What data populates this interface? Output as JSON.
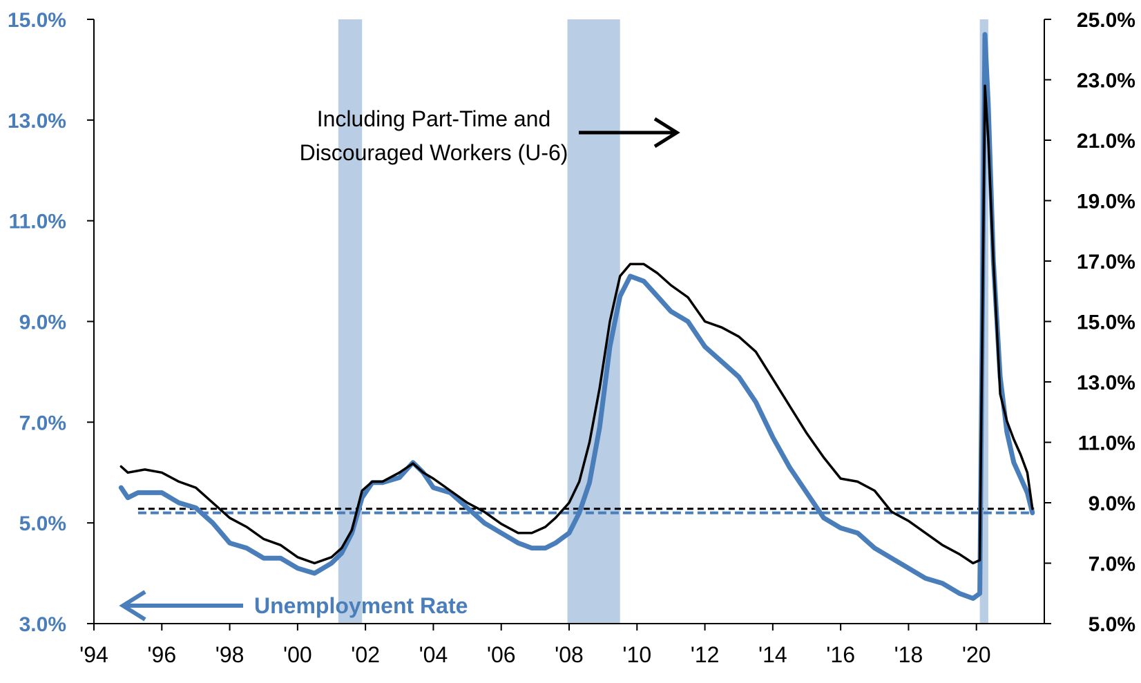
{
  "chart_data": {
    "type": "line",
    "x_ticks": [
      "'94",
      "'96",
      "'98",
      "'00",
      "'02",
      "'04",
      "'06",
      "'08",
      "'10",
      "'12",
      "'14",
      "'16",
      "'18",
      "'20"
    ],
    "y_left": {
      "ticks": [
        "3.0%",
        "5.0%",
        "7.0%",
        "9.0%",
        "11.0%",
        "13.0%",
        "15.0%"
      ],
      "range": [
        3,
        15
      ]
    },
    "y_right": {
      "ticks": [
        "5.0%",
        "7.0%",
        "9.0%",
        "11.0%",
        "13.0%",
        "15.0%",
        "17.0%",
        "19.0%",
        "21.0%",
        "23.0%",
        "25.0%"
      ],
      "range": [
        5,
        25
      ]
    },
    "recessions": [
      [
        2001.2,
        2001.9
      ],
      [
        2007.95,
        2009.5
      ],
      [
        2020.1,
        2020.35
      ]
    ],
    "reference_lines": {
      "unemployment": 5.2,
      "u6": 8.8
    },
    "annotations": {
      "u6_line1": "Including Part-Time and",
      "u6_line2": "Discouraged Workers (U-6)",
      "unemployment": "Unemployment Rate"
    },
    "series": [
      {
        "name": "Unemployment Rate",
        "axis": "left",
        "color": "#4a7ebb",
        "x": [
          1994.8,
          1995.0,
          1995.3,
          1995.6,
          1996.0,
          1996.5,
          1997.0,
          1997.5,
          1998.0,
          1998.5,
          1999.0,
          1999.5,
          2000.0,
          2000.5,
          2001.0,
          2001.3,
          2001.6,
          2001.9,
          2002.2,
          2002.5,
          2003.0,
          2003.4,
          2003.7,
          2004.0,
          2004.5,
          2005.0,
          2005.5,
          2006.0,
          2006.5,
          2006.9,
          2007.3,
          2007.6,
          2008.0,
          2008.3,
          2008.6,
          2008.9,
          2009.2,
          2009.5,
          2009.8,
          2010.2,
          2010.6,
          2011.0,
          2011.5,
          2012.0,
          2012.5,
          2013.0,
          2013.5,
          2014.0,
          2014.5,
          2015.0,
          2015.5,
          2016.0,
          2016.5,
          2017.0,
          2017.5,
          2018.0,
          2018.5,
          2019.0,
          2019.5,
          2019.9,
          2020.1,
          2020.25,
          2020.35,
          2020.5,
          2020.7,
          2020.9,
          2021.1,
          2021.3,
          2021.5,
          2021.65
        ],
        "y": [
          5.7,
          5.5,
          5.6,
          5.6,
          5.6,
          5.4,
          5.3,
          5.0,
          4.6,
          4.5,
          4.3,
          4.3,
          4.1,
          4.0,
          4.2,
          4.4,
          4.8,
          5.5,
          5.8,
          5.8,
          5.9,
          6.2,
          6.0,
          5.7,
          5.6,
          5.3,
          5.0,
          4.8,
          4.6,
          4.5,
          4.5,
          4.6,
          4.8,
          5.2,
          5.8,
          6.9,
          8.5,
          9.5,
          9.9,
          9.8,
          9.5,
          9.2,
          9.0,
          8.5,
          8.2,
          7.9,
          7.4,
          6.7,
          6.1,
          5.6,
          5.1,
          4.9,
          4.8,
          4.5,
          4.3,
          4.1,
          3.9,
          3.8,
          3.6,
          3.5,
          3.6,
          14.7,
          13.3,
          10.2,
          7.9,
          6.8,
          6.2,
          5.9,
          5.6,
          5.2
        ]
      },
      {
        "name": "U-6",
        "axis": "right",
        "color": "#000000",
        "x": [
          1994.8,
          1995.0,
          1995.5,
          1996.0,
          1996.5,
          1997.0,
          1997.5,
          1998.0,
          1998.5,
          1999.0,
          1999.5,
          2000.0,
          2000.5,
          2001.0,
          2001.3,
          2001.6,
          2001.9,
          2002.2,
          2002.5,
          2003.0,
          2003.4,
          2003.7,
          2004.0,
          2004.5,
          2005.0,
          2005.5,
          2006.0,
          2006.5,
          2006.9,
          2007.3,
          2007.6,
          2008.0,
          2008.3,
          2008.6,
          2008.9,
          2009.2,
          2009.5,
          2009.8,
          2010.2,
          2010.6,
          2011.0,
          2011.5,
          2012.0,
          2012.5,
          2013.0,
          2013.5,
          2014.0,
          2014.5,
          2015.0,
          2015.5,
          2016.0,
          2016.5,
          2017.0,
          2017.5,
          2018.0,
          2018.5,
          2019.0,
          2019.5,
          2019.9,
          2020.1,
          2020.25,
          2020.35,
          2020.5,
          2020.7,
          2020.9,
          2021.1,
          2021.3,
          2021.5,
          2021.65
        ],
        "y": [
          10.2,
          10.0,
          10.1,
          10.0,
          9.7,
          9.5,
          9.0,
          8.5,
          8.2,
          7.8,
          7.6,
          7.2,
          7.0,
          7.2,
          7.5,
          8.1,
          9.4,
          9.7,
          9.7,
          10.0,
          10.3,
          10.0,
          9.8,
          9.4,
          9.0,
          8.7,
          8.3,
          8.0,
          8.0,
          8.2,
          8.5,
          9.0,
          9.7,
          11.0,
          12.8,
          15.0,
          16.5,
          16.9,
          16.9,
          16.6,
          16.2,
          15.8,
          15.0,
          14.8,
          14.5,
          14.0,
          13.1,
          12.2,
          11.3,
          10.5,
          9.8,
          9.7,
          9.4,
          8.7,
          8.4,
          8.0,
          7.6,
          7.3,
          7.0,
          7.1,
          22.8,
          21.0,
          17.0,
          12.6,
          11.7,
          11.1,
          10.6,
          10.0,
          8.8
        ]
      }
    ]
  }
}
